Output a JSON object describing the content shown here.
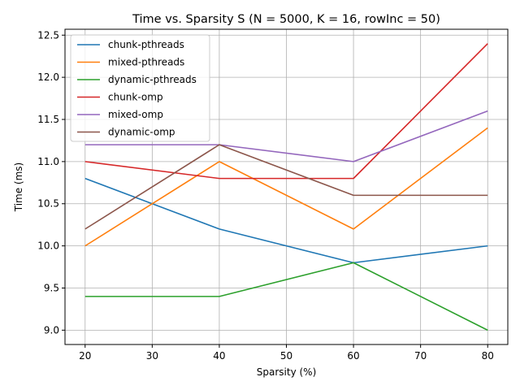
{
  "chart_data": {
    "type": "line",
    "title": "Time vs. Sparsity S (N = 5000, K = 16, rowInc = 50)",
    "xlabel": "Sparsity (%)",
    "ylabel": "Time (ms)",
    "x": [
      20,
      40,
      60,
      80
    ],
    "xlim": [
      17,
      83
    ],
    "ylim": [
      8.83,
      12.57
    ],
    "xticks": [
      20,
      30,
      40,
      50,
      60,
      70,
      80
    ],
    "yticks": [
      9.0,
      9.5,
      10.0,
      10.5,
      11.0,
      11.5,
      12.0,
      12.5
    ],
    "xtick_labels": [
      "20",
      "30",
      "40",
      "50",
      "60",
      "70",
      "80"
    ],
    "ytick_labels": [
      "9.0",
      "9.5",
      "10.0",
      "10.5",
      "11.0",
      "11.5",
      "12.0",
      "12.5"
    ],
    "grid": true,
    "legend_position": "upper-left",
    "series": [
      {
        "name": "chunk-pthreads",
        "color": "#1f77b4",
        "values": [
          10.8,
          10.2,
          9.8,
          10.0
        ]
      },
      {
        "name": "mixed-pthreads",
        "color": "#ff7f0e",
        "values": [
          10.0,
          11.0,
          10.2,
          11.4
        ]
      },
      {
        "name": "dynamic-pthreads",
        "color": "#2ca02c",
        "values": [
          9.4,
          9.4,
          9.8,
          9.0
        ]
      },
      {
        "name": "chunk-omp",
        "color": "#d62728",
        "values": [
          11.0,
          10.8,
          10.8,
          12.4
        ]
      },
      {
        "name": "mixed-omp",
        "color": "#9467bd",
        "values": [
          11.2,
          11.2,
          11.0,
          11.6
        ]
      },
      {
        "name": "dynamic-omp",
        "color": "#8c564b",
        "values": [
          10.2,
          11.2,
          10.6,
          10.6
        ]
      }
    ]
  }
}
